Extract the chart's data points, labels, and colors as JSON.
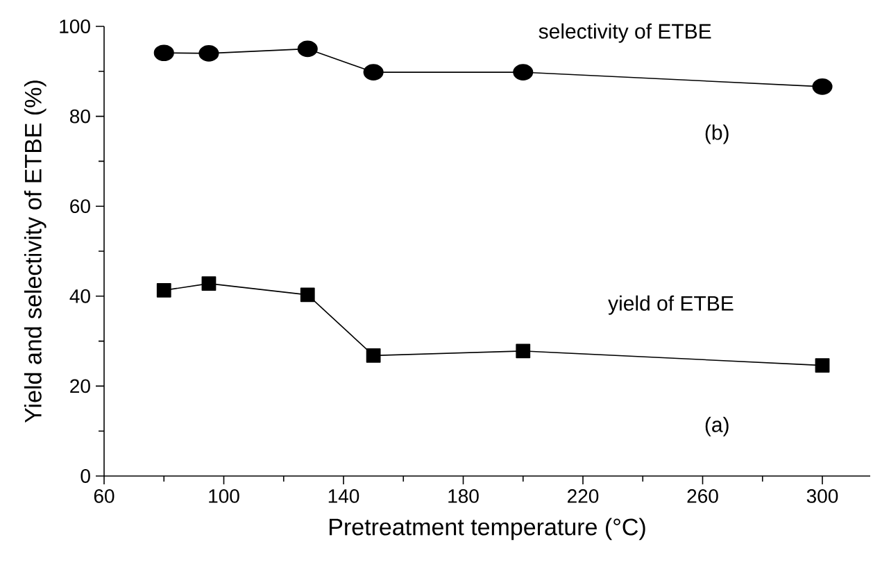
{
  "chart_data": {
    "type": "line",
    "xlabel": "Pretreatment temperature (°C)",
    "ylabel": "Yield and selectivity of ETBE (%)",
    "x": [
      80,
      95,
      128,
      150,
      200,
      300
    ],
    "series": [
      {
        "name": "selectivity of ETBE",
        "color": "#000000",
        "marker": "circle",
        "values": [
          94.1,
          94.0,
          95.0,
          89.8,
          89.8,
          86.6
        ]
      },
      {
        "name": "yield of ETBE",
        "color": "#000000",
        "marker": "square",
        "values": [
          41.3,
          42.8,
          40.3,
          26.8,
          27.8,
          24.6
        ]
      }
    ],
    "annotations": [
      "(b)",
      "(a)"
    ],
    "xlim": [
      60,
      316
    ],
    "ylim": [
      0,
      100
    ],
    "xticks": [
      60,
      100,
      140,
      180,
      220,
      260,
      300
    ],
    "yticks": [
      0,
      20,
      40,
      60,
      80,
      100
    ],
    "grid": false,
    "legend": false,
    "line_style": "solid"
  }
}
